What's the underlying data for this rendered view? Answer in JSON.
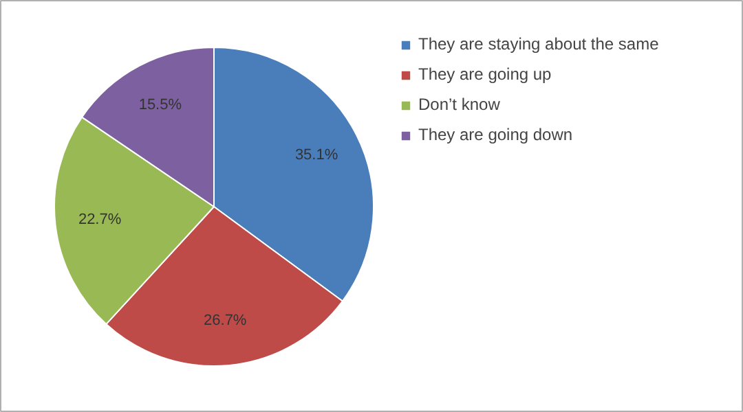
{
  "chart_data": {
    "type": "pie",
    "categories": [
      "They are staying about the same",
      "They are going up",
      "Don’t know",
      "They are going down"
    ],
    "values": [
      35.1,
      26.7,
      22.7,
      15.5
    ],
    "colors": [
      "#4a7ebb",
      "#be4b48",
      "#98b954",
      "#7d60a0"
    ],
    "value_labels": [
      "35.1%",
      "26.7%",
      "22.7%",
      "15.5%"
    ],
    "legend": "right"
  }
}
